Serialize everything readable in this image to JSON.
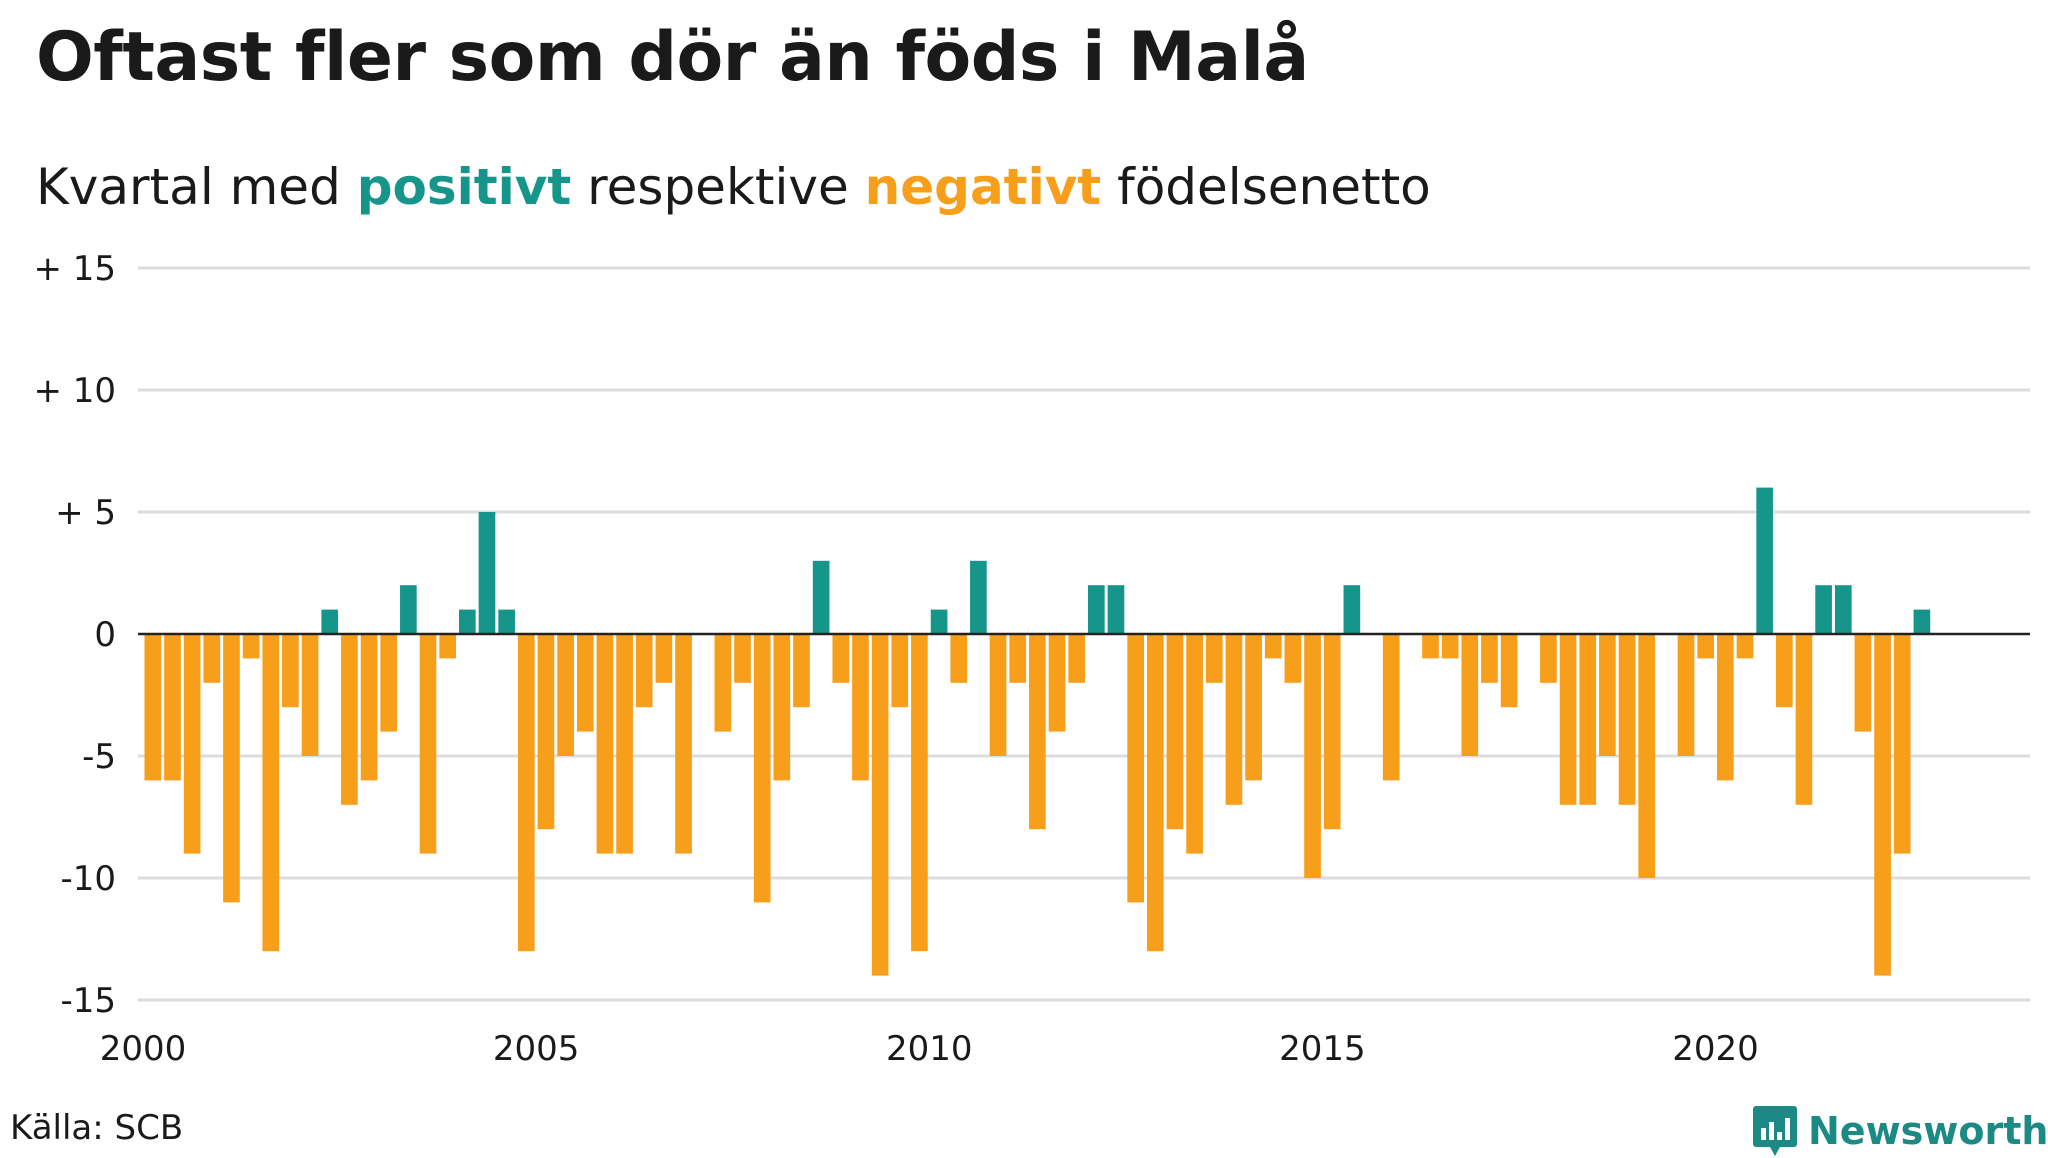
{
  "title": "Oftast fler som dör än föds i Malå",
  "subtitle": {
    "prefix": "Kvartal med ",
    "positive": "positivt",
    "middle": " respektive ",
    "negative": "negativt",
    "suffix": " födelsenetto"
  },
  "source": "Källa: SCB",
  "brand": "Newsworthy",
  "colors": {
    "positive": "#16968a",
    "negative": "#f79e1b",
    "grid": "#dddddd",
    "axis": "#222222",
    "brand": "#1c8a84"
  },
  "chart_data": {
    "type": "bar",
    "title": "Oftast fler som dör än föds i Malå",
    "subtitle": "Kvartal med positivt respektive negativt födelsenetto",
    "start_year": 2000,
    "periods_per_year": 4,
    "ylim": [
      -15,
      15
    ],
    "y_ticks": [
      15,
      10,
      5,
      0,
      -5,
      -10,
      -15
    ],
    "y_tick_labels": [
      "+ 15",
      "+ 10",
      "+  5",
      "0",
      "-5",
      "-10",
      "-15"
    ],
    "x_tick_labels": [
      "2000",
      "2005",
      "2010",
      "2015",
      "2020"
    ],
    "grid": true,
    "series": [
      {
        "values": [
          -6,
          -6,
          -9,
          -2,
          -11,
          -1,
          -13,
          -3,
          -5,
          1,
          -7,
          -6,
          -4,
          2,
          -9,
          -1,
          1,
          5,
          1,
          -13,
          -8,
          -5,
          -4,
          -9,
          -9,
          -3,
          -2,
          -9,
          0,
          -4,
          -2,
          -11,
          -6,
          -3,
          3,
          -2,
          -6,
          -14,
          -3,
          -13,
          1,
          -2,
          3,
          -5,
          -2,
          -8,
          -4,
          -2,
          2,
          2,
          -11,
          -13,
          -8,
          -9,
          -2,
          -7,
          -6,
          -1,
          -2,
          -10,
          -8,
          2,
          0,
          -6,
          0,
          -1,
          -1,
          -5,
          -2,
          -3,
          0,
          -2,
          -7,
          -7,
          -5,
          -7,
          -10,
          0,
          -5,
          -1,
          -6,
          -1,
          6,
          -3,
          -7,
          2,
          2,
          -4,
          -14,
          -9,
          1
        ]
      }
    ]
  }
}
